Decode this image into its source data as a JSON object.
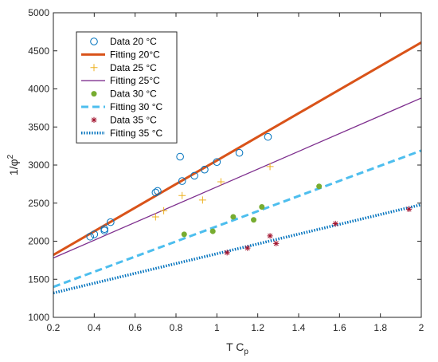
{
  "chart_data": {
    "type": "scatter",
    "title": "",
    "xlabel": "T C",
    "xlabel_sub": "p",
    "ylabel": "1/φ",
    "ylabel_sup": "2",
    "xlim": [
      0.2,
      2
    ],
    "ylim": [
      1000,
      5000
    ],
    "xticks": [
      "0.2",
      "0.4",
      "0.6",
      "0.8",
      "1",
      "1.2",
      "1.4",
      "1.6",
      "1.8",
      "2"
    ],
    "yticks": [
      "1000",
      "1500",
      "2000",
      "2500",
      "3000",
      "3500",
      "4000",
      "4500",
      "5000"
    ],
    "grid": false,
    "legend_position": "top-left",
    "series": [
      {
        "name": "Data 20 °C",
        "kind": "data",
        "marker": "circle",
        "color": "#0072BD",
        "points": [
          [
            0.38,
            2060
          ],
          [
            0.4,
            2090
          ],
          [
            0.45,
            2140
          ],
          [
            0.45,
            2160
          ],
          [
            0.48,
            2250
          ],
          [
            0.7,
            2640
          ],
          [
            0.71,
            2660
          ],
          [
            0.82,
            3110
          ],
          [
            0.83,
            2790
          ],
          [
            0.89,
            2860
          ],
          [
            0.94,
            2940
          ],
          [
            1.0,
            3040
          ],
          [
            1.11,
            3160
          ],
          [
            1.25,
            3370
          ]
        ]
      },
      {
        "name": "Fitting 20°C",
        "kind": "fit",
        "line": "solid",
        "color": "#D95319",
        "width": 3,
        "points": [
          [
            0.2,
            1820
          ],
          [
            2.0,
            4610
          ]
        ]
      },
      {
        "name": "Data 25 °C",
        "kind": "data",
        "marker": "plus",
        "color": "#EDB120",
        "points": [
          [
            0.7,
            2320
          ],
          [
            0.74,
            2400
          ],
          [
            0.83,
            2600
          ],
          [
            0.93,
            2540
          ],
          [
            1.02,
            2780
          ],
          [
            1.26,
            2980
          ]
        ]
      },
      {
        "name": "Fitting 25°C",
        "kind": "fit",
        "line": "solid",
        "color": "#7E2F8E",
        "width": 1.3,
        "points": [
          [
            0.2,
            1780
          ],
          [
            2.0,
            3880
          ]
        ]
      },
      {
        "name": "Data 30 °C",
        "kind": "data",
        "marker": "dot",
        "color": "#77AC30",
        "points": [
          [
            0.84,
            2090
          ],
          [
            0.98,
            2130
          ],
          [
            1.08,
            2320
          ],
          [
            1.18,
            2280
          ],
          [
            1.22,
            2450
          ],
          [
            1.5,
            2720
          ]
        ]
      },
      {
        "name": "Fitting 30 °C",
        "kind": "fit",
        "line": "dashed",
        "color": "#4DBEEE",
        "width": 3,
        "points": [
          [
            0.2,
            1400
          ],
          [
            2.0,
            3190
          ]
        ]
      },
      {
        "name": "Data 35 °C",
        "kind": "data",
        "marker": "asterisk",
        "color": "#A2142F",
        "points": [
          [
            1.05,
            1850
          ],
          [
            1.15,
            1910
          ],
          [
            1.26,
            2070
          ],
          [
            1.29,
            1970
          ],
          [
            1.58,
            2230
          ],
          [
            1.94,
            2420
          ]
        ]
      },
      {
        "name": "Fitting 35 °C",
        "kind": "fit",
        "line": "dotted",
        "color": "#0072BD",
        "width": 3.5,
        "points": [
          [
            0.2,
            1320
          ],
          [
            2.0,
            2480
          ]
        ]
      }
    ]
  }
}
